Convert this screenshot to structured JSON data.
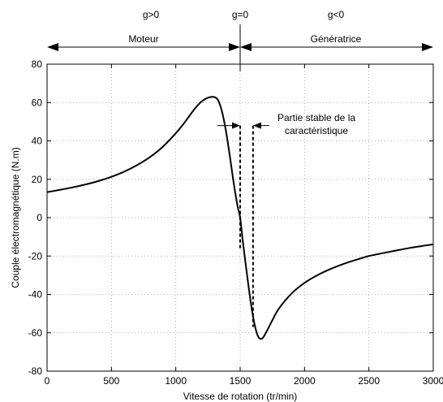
{
  "chart_data": {
    "type": "line",
    "xlabel": "Vitesse de rotation (tr/min)",
    "ylabel": "Couple électromagnétique (N.m)",
    "xlim": [
      0,
      3000
    ],
    "ylim": [
      -80,
      80
    ],
    "x_ticks": [
      0,
      500,
      1000,
      1500,
      2000,
      2500,
      3000
    ],
    "y_ticks": [
      -80,
      -60,
      -40,
      -20,
      0,
      20,
      40,
      60,
      80
    ],
    "grid": true,
    "regions": {
      "g_pos": "g>0",
      "g_zero": "g=0",
      "g_neg": "g<0",
      "motor": "Moteur",
      "generator": "Génératrice"
    },
    "annotation": {
      "line1": "Partie stable de la",
      "line2": "caractéristique",
      "x_range": [
        1500,
        1600
      ]
    },
    "series": [
      {
        "x": [
          0,
          100,
          200,
          300,
          400,
          500,
          600,
          700,
          800,
          900,
          1000,
          1050,
          1100,
          1150,
          1200,
          1250,
          1300,
          1330,
          1360,
          1390,
          1420,
          1450,
          1480,
          1500,
          1520,
          1550,
          1580,
          1610,
          1640,
          1670,
          1700,
          1750,
          1800,
          1900,
          2000,
          2100,
          2200,
          2300,
          2400,
          2500,
          2600,
          2700,
          2800,
          2900,
          3000
        ],
        "values": [
          13.3,
          14.5,
          15.8,
          17.3,
          19.1,
          21.3,
          24.0,
          27.4,
          31.6,
          37.0,
          44.0,
          48.0,
          52.5,
          57.0,
          60.5,
          62.5,
          62.8,
          61.0,
          55.0,
          45.0,
          32.0,
          18.0,
          6.0,
          0.0,
          -12.0,
          -28.0,
          -43.0,
          -55.0,
          -62.0,
          -63.0,
          -60.0,
          -53.5,
          -47.5,
          -39.5,
          -34.0,
          -30.0,
          -26.8,
          -24.2,
          -22.0,
          -20.0,
          -18.6,
          -17.3,
          -16.0,
          -14.9,
          -13.9
        ]
      }
    ]
  }
}
